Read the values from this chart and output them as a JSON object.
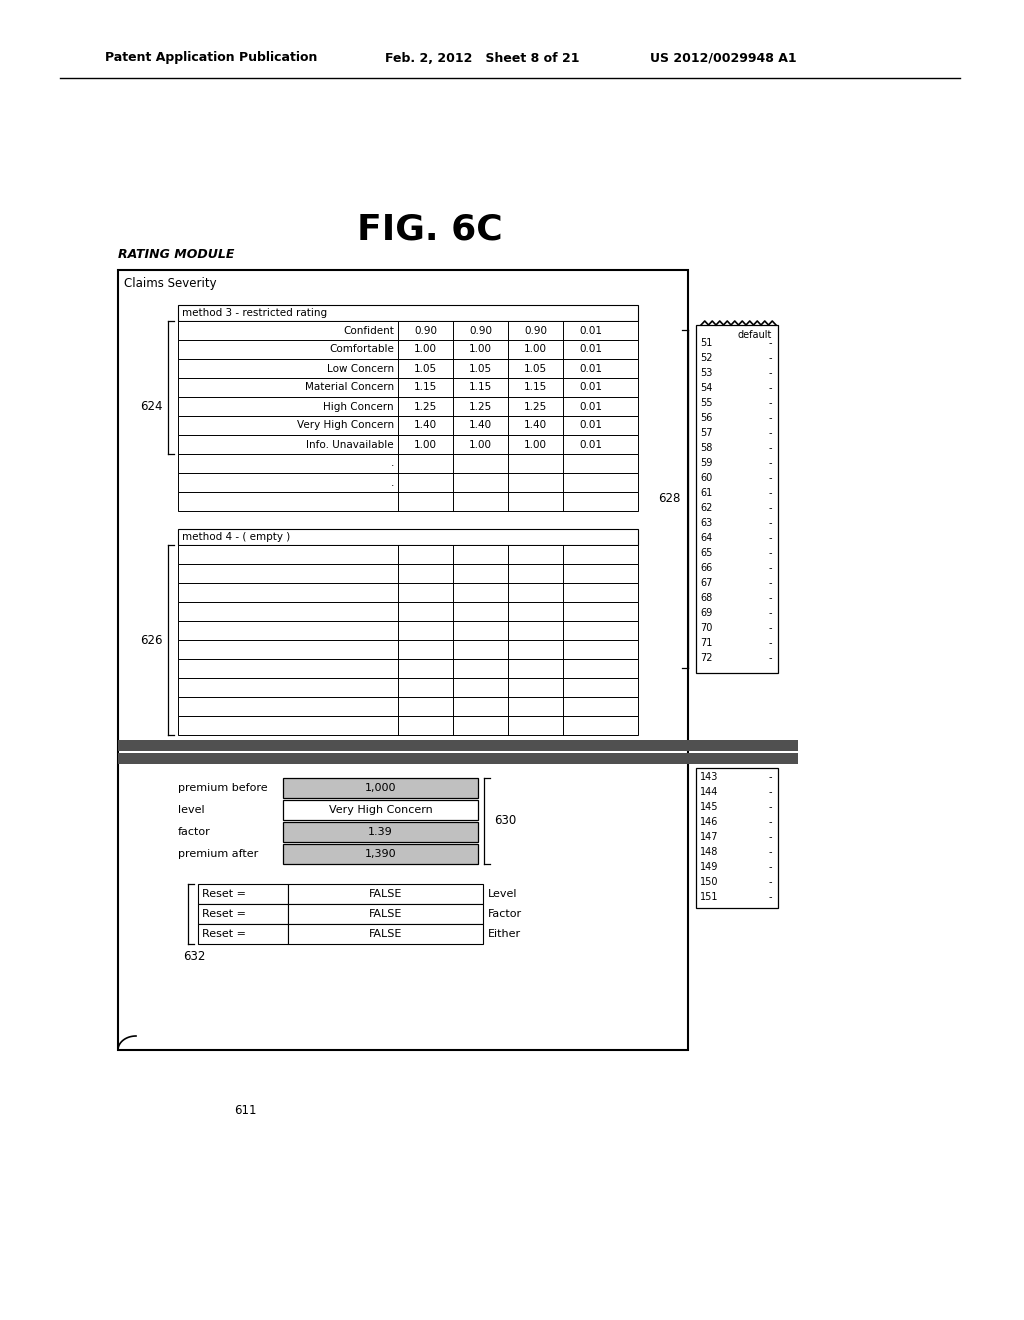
{
  "title": "FIG. 6C",
  "subtitle": "RATING MODULE",
  "header_left": "Patent Application Publication",
  "header_mid": "Feb. 2, 2012   Sheet 8 of 21",
  "header_right": "US 2012/0029948 A1",
  "fig_label": "Claims Severity",
  "method3_label": "method 3 - restricted rating",
  "method3_rows": [
    [
      "Confident",
      "0.90",
      "0.90",
      "0.90",
      "0.01"
    ],
    [
      "Comfortable",
      "1.00",
      "1.00",
      "1.00",
      "0.01"
    ],
    [
      "Low Concern",
      "1.05",
      "1.05",
      "1.05",
      "0.01"
    ],
    [
      "Material Concern",
      "1.15",
      "1.15",
      "1.15",
      "0.01"
    ],
    [
      "High Concern",
      "1.25",
      "1.25",
      "1.25",
      "0.01"
    ],
    [
      "Very High Concern",
      "1.40",
      "1.40",
      "1.40",
      "0.01"
    ],
    [
      "Info. Unavailable",
      "1.00",
      "1.00",
      "1.00",
      "0.01"
    ],
    [
      ".",
      "",
      "",
      "",
      ""
    ],
    [
      ".",
      "",
      "",
      "",
      ""
    ],
    [
      "",
      "",
      "",
      "",
      ""
    ]
  ],
  "method4_label": "method 4 - ( empty )",
  "method4_rows": 10,
  "right_panel_numbers_1": [
    "51",
    "52",
    "53",
    "54",
    "55",
    "56",
    "57",
    "58",
    "59",
    "60",
    "61",
    "62",
    "63",
    "64",
    "65",
    "66",
    "67",
    "68",
    "69",
    "70",
    "71",
    "72"
  ],
  "right_panel_numbers_2": [
    "143",
    "144",
    "145",
    "146",
    "147",
    "148",
    "149",
    "150",
    "151"
  ],
  "label_624": "624",
  "label_626": "626",
  "label_628": "628",
  "label_630": "630",
  "label_632": "632",
  "label_611": "611",
  "premium_before": "1,000",
  "level_val": "Very High Concern",
  "factor_val": "1.39",
  "premium_after": "1,390",
  "reset_rows": [
    [
      "Reset =",
      "FALSE",
      "Level"
    ],
    [
      "Reset =",
      "FALSE",
      "Factor"
    ],
    [
      "Reset =",
      "FALSE",
      "Either"
    ]
  ],
  "default_header": "default",
  "bg_color": "#ffffff",
  "shaded_color": "#c0c0c0",
  "dark_bar_color": "#505050"
}
